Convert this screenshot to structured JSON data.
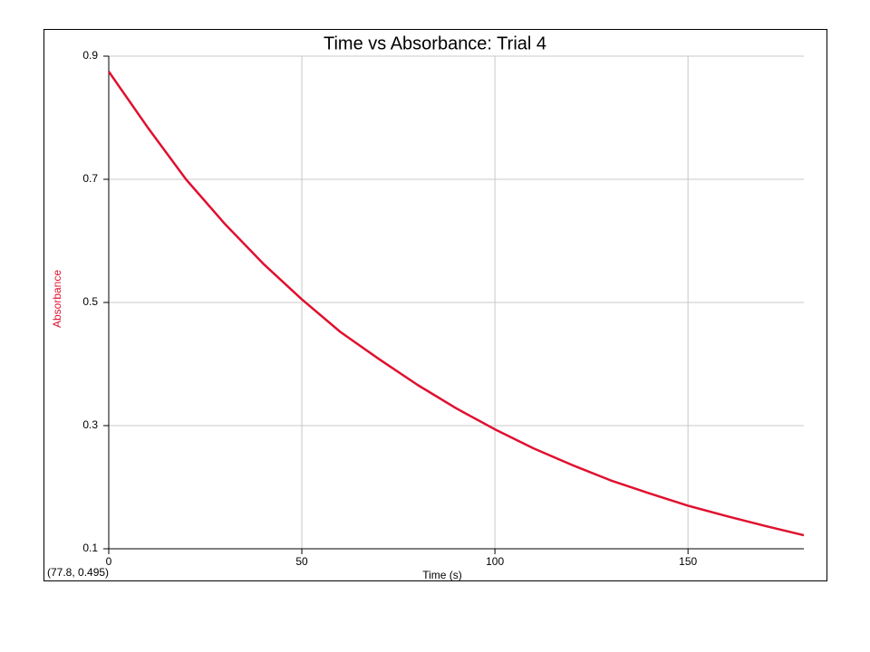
{
  "chart_data": {
    "type": "line",
    "title": "Time vs Absorbance:  Trial 4",
    "x_label": "Time (s)",
    "y_label": "Absorbance",
    "annotation": "(77.8, 0.495)",
    "x": [
      0,
      10,
      20,
      30,
      40,
      50,
      60,
      70,
      80,
      90,
      100,
      110,
      120,
      130,
      140,
      150,
      160,
      170,
      180
    ],
    "values": [
      0.875,
      0.785,
      0.7,
      0.628,
      0.563,
      0.505,
      0.452,
      0.408,
      0.366,
      0.328,
      0.294,
      0.263,
      0.236,
      0.211,
      0.19,
      0.17,
      0.153,
      0.137,
      0.122
    ],
    "color": "#e0102f",
    "xlim": [
      0,
      180
    ],
    "xticks": [
      0,
      50,
      100,
      150
    ],
    "ylim": [
      0.1,
      0.9
    ],
    "yticks": [
      0.1,
      0.3,
      0.5,
      0.7,
      0.9
    ],
    "grid": true
  }
}
